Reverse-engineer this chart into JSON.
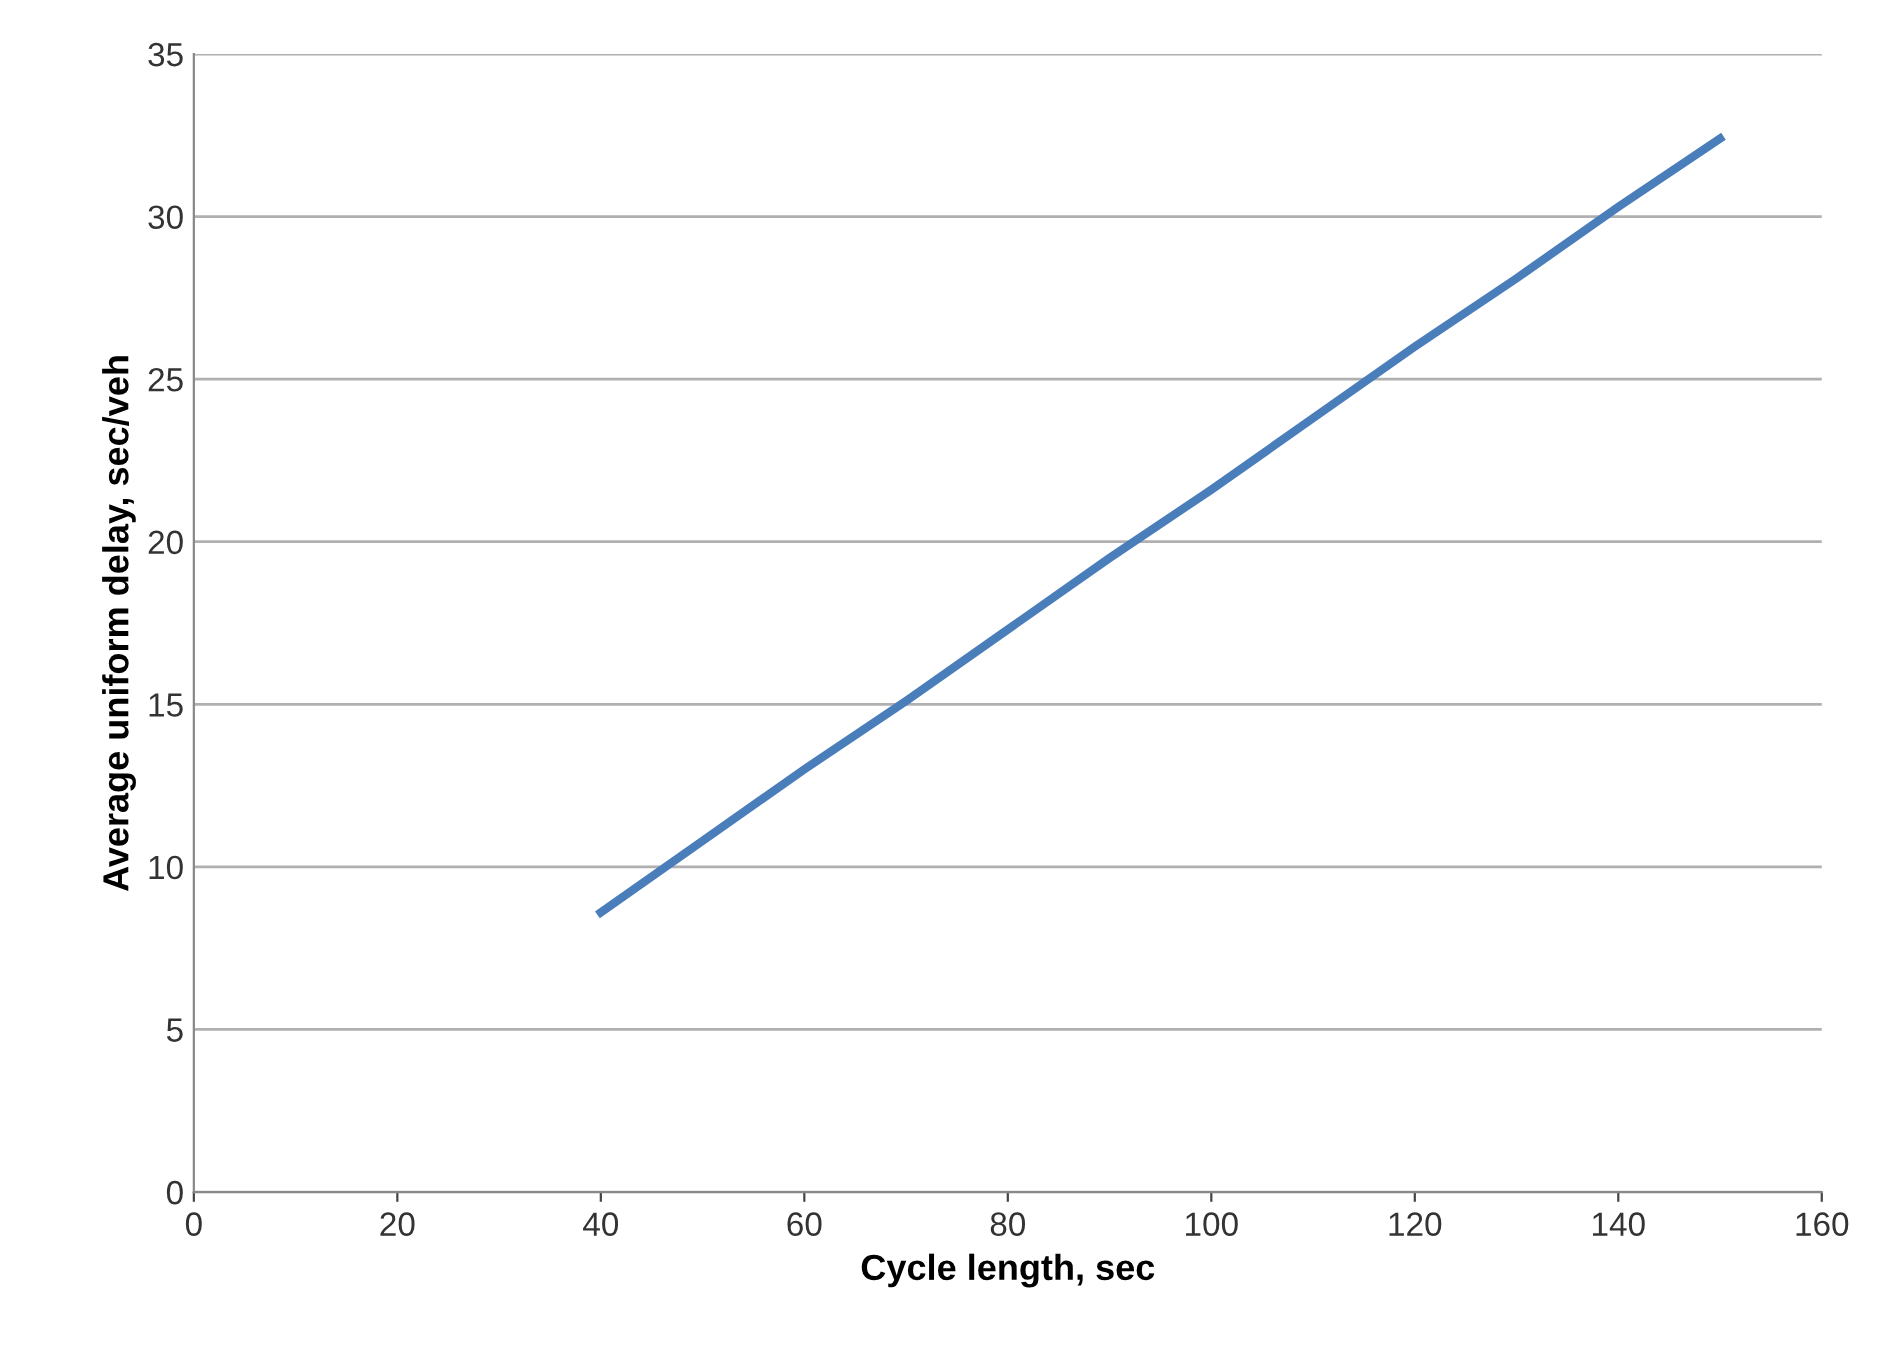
{
  "chart_data": {
    "type": "line",
    "xlabel": "Cycle length, sec",
    "ylabel": "Average uniform delay, sec/veh",
    "x": [
      40,
      50,
      60,
      70,
      80,
      90,
      100,
      110,
      120,
      130,
      140,
      150
    ],
    "series": [
      {
        "color": "#4a7ebb",
        "values": [
          8.6,
          10.8,
          13.0,
          15.1,
          17.3,
          19.5,
          21.6,
          23.8,
          26.0,
          28.1,
          30.3,
          32.4
        ]
      }
    ],
    "xlim": [
      0,
      160
    ],
    "xticks": [
      0,
      20,
      40,
      60,
      80,
      100,
      120,
      140,
      160
    ],
    "ylim": [
      0,
      35
    ],
    "yticks": [
      0,
      5,
      10,
      15,
      20,
      25,
      30,
      35
    ],
    "grid": "y",
    "legend": false,
    "marker": "none",
    "line_style": "solid"
  }
}
